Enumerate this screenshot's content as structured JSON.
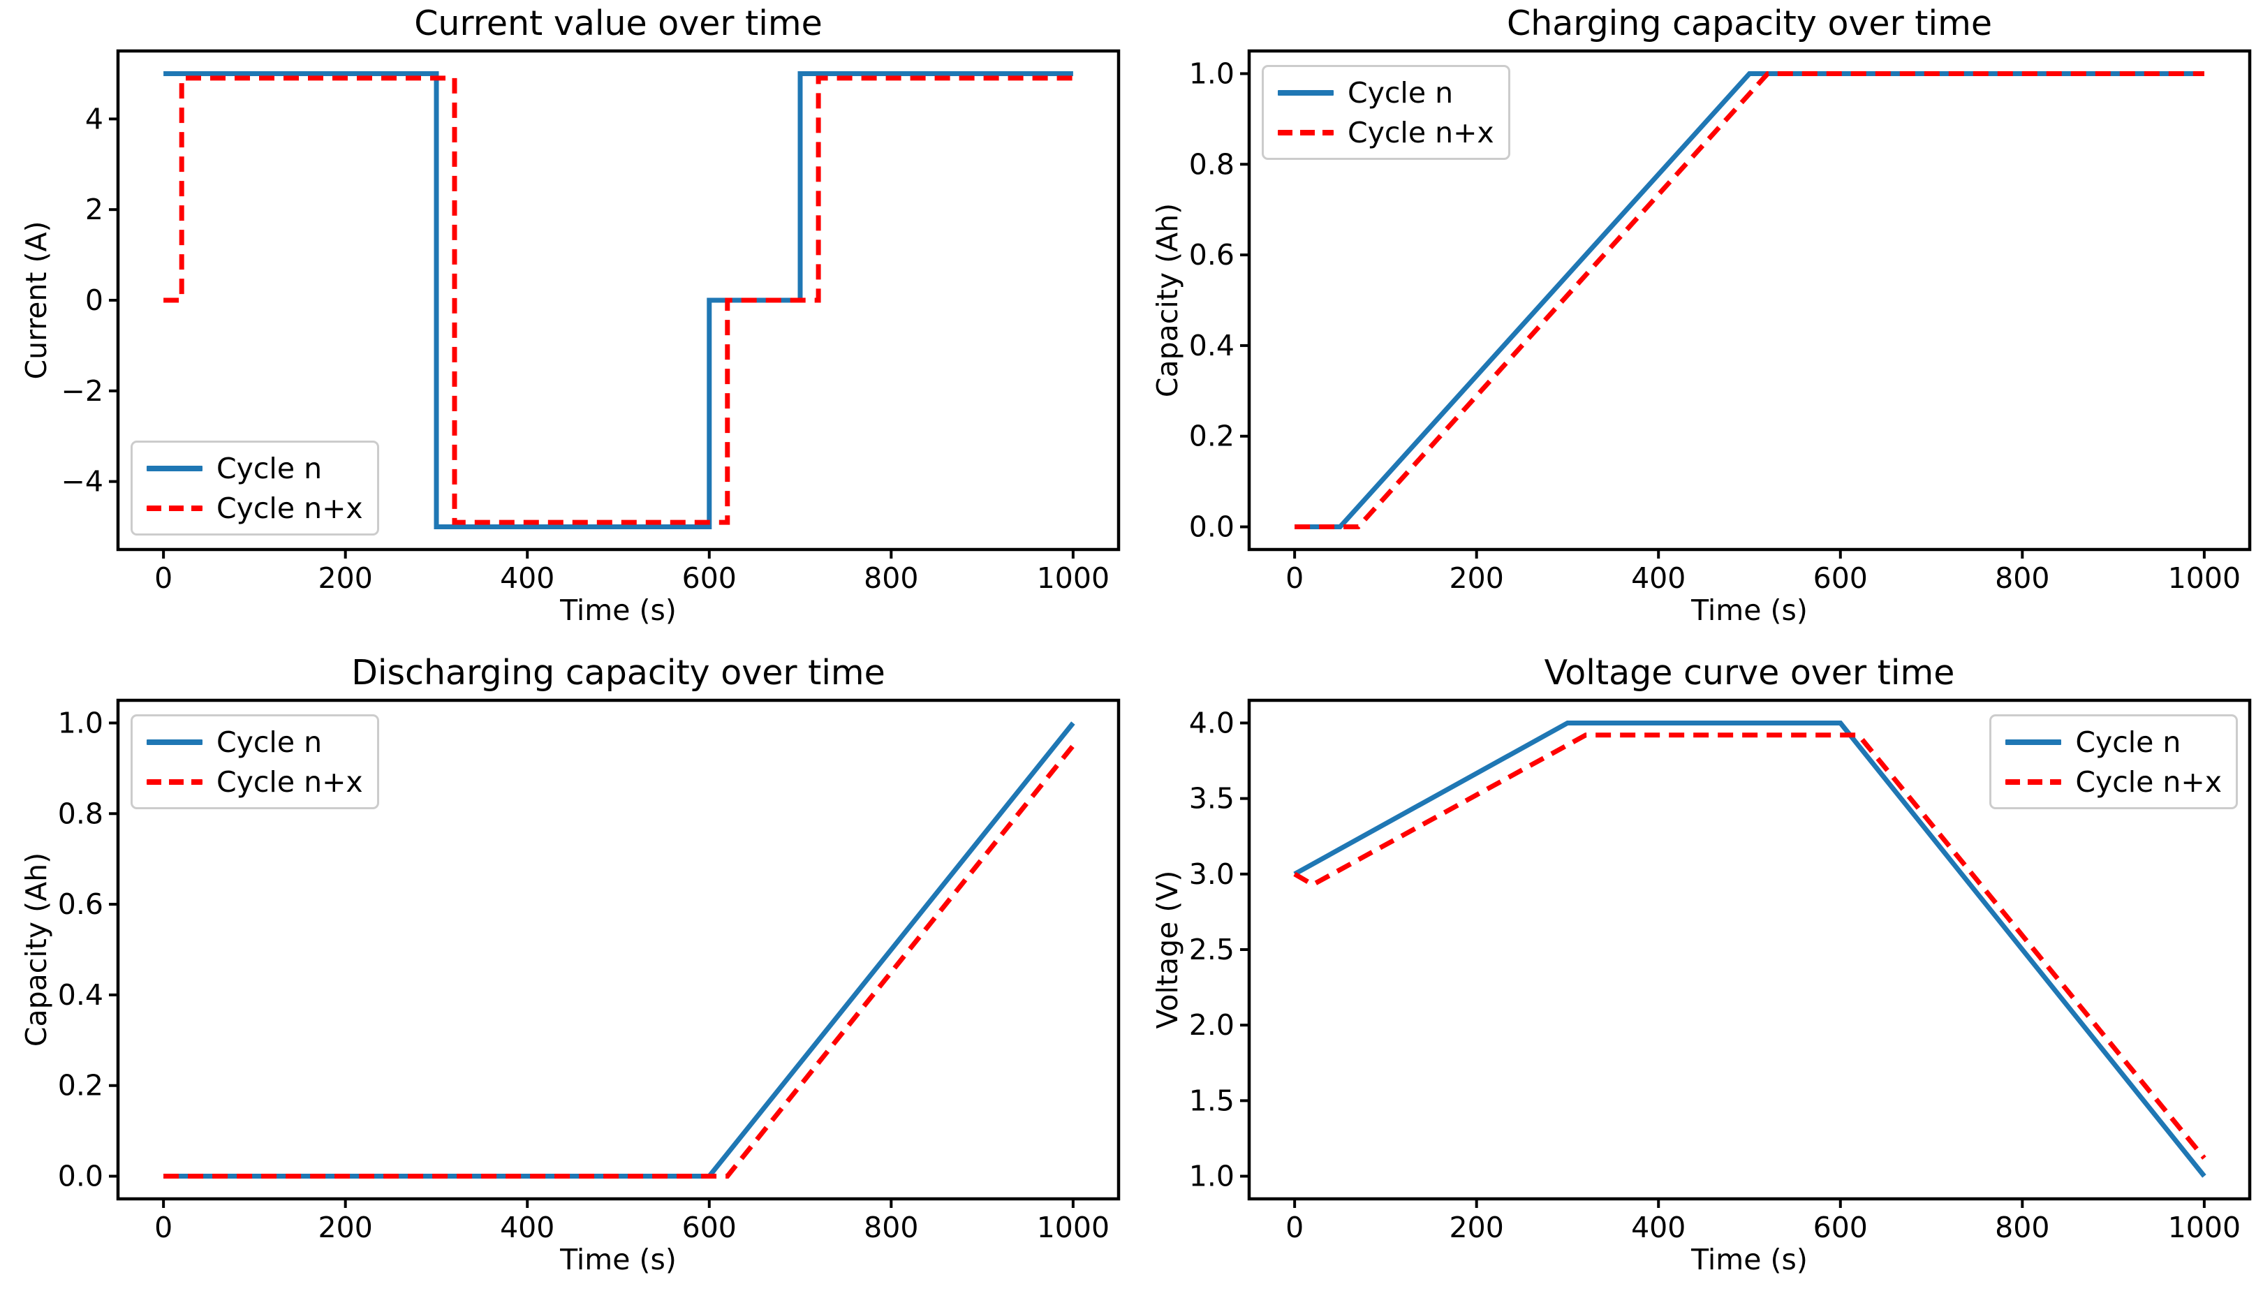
{
  "figure": {
    "background": "#ffffff"
  },
  "colors": {
    "cycle_n": "#1f77b4",
    "cycle_nx": "#ff0000",
    "axis": "#000000",
    "legend_border": "#cccccc"
  },
  "legend": {
    "entries": [
      {
        "label": "Cycle n",
        "style": "solid",
        "color_key": "cycle_n"
      },
      {
        "label": "Cycle n+x",
        "style": "dashed",
        "color_key": "cycle_nx"
      }
    ]
  },
  "chart_data": [
    {
      "id": "current",
      "type": "line",
      "title": "Current value over time",
      "xlabel": "Time (s)",
      "ylabel": "Current (A)",
      "xlim": [
        -50,
        1050
      ],
      "ylim": [
        -5.5,
        5.5
      ],
      "xticks": [
        0,
        200,
        400,
        600,
        800,
        1000
      ],
      "xtick_labels": [
        "0",
        "200",
        "400",
        "600",
        "800",
        "1000"
      ],
      "yticks": [
        -4,
        -2,
        0,
        2,
        4
      ],
      "ytick_labels": [
        "−4",
        "−2",
        "0",
        "2",
        "4"
      ],
      "grid": false,
      "legend_position": "lower-left",
      "series": [
        {
          "name": "Cycle n",
          "color_key": "cycle_n",
          "dashed": false,
          "x": [
            0,
            300,
            300,
            600,
            600,
            700,
            700,
            1000
          ],
          "y": [
            5,
            5,
            -5,
            -5,
            0,
            0,
            5,
            5
          ]
        },
        {
          "name": "Cycle n+x",
          "color_key": "cycle_nx",
          "dashed": true,
          "x": [
            0,
            20,
            20,
            320,
            320,
            620,
            620,
            720,
            720,
            1000
          ],
          "y": [
            0,
            0,
            4.9,
            4.9,
            -4.9,
            -4.9,
            0,
            0,
            4.9,
            4.9
          ]
        }
      ]
    },
    {
      "id": "charging-capacity",
      "type": "line",
      "title": "Charging capacity over time",
      "xlabel": "Time (s)",
      "ylabel": "Capacity (Ah)",
      "xlim": [
        -50,
        1050
      ],
      "ylim": [
        -0.05,
        1.05
      ],
      "xticks": [
        0,
        200,
        400,
        600,
        800,
        1000
      ],
      "xtick_labels": [
        "0",
        "200",
        "400",
        "600",
        "800",
        "1000"
      ],
      "yticks": [
        0.0,
        0.2,
        0.4,
        0.6,
        0.8,
        1.0
      ],
      "ytick_labels": [
        "0.0",
        "0.2",
        "0.4",
        "0.6",
        "0.8",
        "1.0"
      ],
      "grid": false,
      "legend_position": "upper-left",
      "series": [
        {
          "name": "Cycle n",
          "color_key": "cycle_n",
          "dashed": false,
          "x": [
            0,
            50,
            500,
            1000
          ],
          "y": [
            0,
            0,
            1.0,
            1.0
          ]
        },
        {
          "name": "Cycle n+x",
          "color_key": "cycle_nx",
          "dashed": true,
          "x": [
            0,
            70,
            520,
            1000
          ],
          "y": [
            0,
            0,
            1.0,
            1.0
          ]
        }
      ]
    },
    {
      "id": "discharging-capacity",
      "type": "line",
      "title": "Discharging capacity over time",
      "xlabel": "Time (s)",
      "ylabel": "Capacity (Ah)",
      "xlim": [
        -50,
        1050
      ],
      "ylim": [
        -0.05,
        1.05
      ],
      "xticks": [
        0,
        200,
        400,
        600,
        800,
        1000
      ],
      "xtick_labels": [
        "0",
        "200",
        "400",
        "600",
        "800",
        "1000"
      ],
      "yticks": [
        0.0,
        0.2,
        0.4,
        0.6,
        0.8,
        1.0
      ],
      "ytick_labels": [
        "0.0",
        "0.2",
        "0.4",
        "0.6",
        "0.8",
        "1.0"
      ],
      "grid": false,
      "legend_position": "upper-left",
      "series": [
        {
          "name": "Cycle n",
          "color_key": "cycle_n",
          "dashed": false,
          "x": [
            0,
            600,
            1000
          ],
          "y": [
            0,
            0,
            1.0
          ]
        },
        {
          "name": "Cycle n+x",
          "color_key": "cycle_nx",
          "dashed": true,
          "x": [
            0,
            620,
            1000
          ],
          "y": [
            0,
            0,
            0.95
          ]
        }
      ]
    },
    {
      "id": "voltage",
      "type": "line",
      "title": "Voltage curve over time",
      "xlabel": "Time (s)",
      "ylabel": "Voltage (V)",
      "xlim": [
        -50,
        1050
      ],
      "ylim": [
        0.85,
        4.15
      ],
      "xticks": [
        0,
        200,
        400,
        600,
        800,
        1000
      ],
      "xtick_labels": [
        "0",
        "200",
        "400",
        "600",
        "800",
        "1000"
      ],
      "yticks": [
        1.0,
        1.5,
        2.0,
        2.5,
        3.0,
        3.5,
        4.0
      ],
      "ytick_labels": [
        "1.0",
        "1.5",
        "2.0",
        "2.5",
        "3.0",
        "3.5",
        "4.0"
      ],
      "grid": false,
      "legend_position": "upper-right",
      "series": [
        {
          "name": "Cycle n",
          "color_key": "cycle_n",
          "dashed": false,
          "x": [
            0,
            300,
            600,
            1000
          ],
          "y": [
            3.0,
            4.0,
            4.0,
            1.0
          ]
        },
        {
          "name": "Cycle n+x",
          "color_key": "cycle_nx",
          "dashed": true,
          "x": [
            0,
            20,
            320,
            620,
            1000
          ],
          "y": [
            3.0,
            2.93,
            3.92,
            3.92,
            1.12
          ]
        }
      ]
    }
  ]
}
